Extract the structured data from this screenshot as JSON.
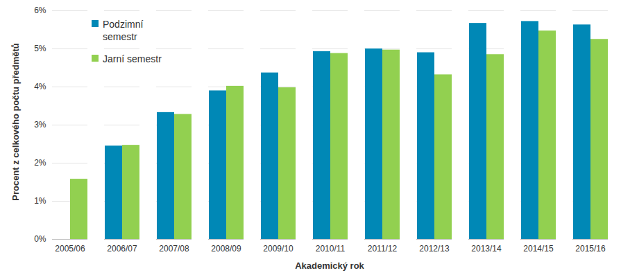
{
  "chart_data": {
    "type": "bar",
    "x_label": "Akademický rok",
    "y_label": "Procent z celkového počtu předmětů",
    "categories": [
      "2005/06",
      "2006/07",
      "2007/08",
      "2008/09",
      "2009/10",
      "2010/11",
      "2011/12",
      "2012/13",
      "2013/14",
      "2014/15",
      "2015/16"
    ],
    "series": [
      {
        "name": "Podzimní semestr",
        "color": "#0088b6",
        "values": [
          null,
          2.45,
          3.33,
          3.9,
          4.37,
          4.93,
          5.0,
          4.9,
          5.67,
          5.72,
          5.63
        ]
      },
      {
        "name": "Jarní semestr",
        "color": "#92d050",
        "values": [
          1.58,
          2.47,
          3.28,
          4.02,
          3.98,
          4.88,
          4.97,
          4.32,
          4.85,
          5.47,
          5.25
        ]
      }
    ],
    "ylim": [
      0,
      6
    ],
    "yticks": [
      {
        "value": 0,
        "label": "0%"
      },
      {
        "value": 1,
        "label": "1%"
      },
      {
        "value": 2,
        "label": "2%"
      },
      {
        "value": 3,
        "label": "3%"
      },
      {
        "value": 4,
        "label": "4%"
      },
      {
        "value": 5,
        "label": "5%"
      },
      {
        "value": 6,
        "label": "6%"
      }
    ],
    "grid": true,
    "legend": "top-left"
  }
}
